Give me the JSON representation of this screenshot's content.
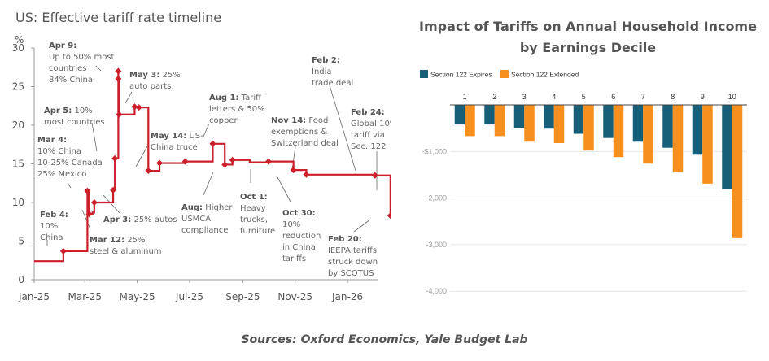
{
  "chart_data": [
    {
      "type": "line",
      "title": "US: Effective tariff rate timeline",
      "ylabel": "%",
      "ylim": [
        0,
        30
      ],
      "yticks": [
        "0",
        "5",
        "10",
        "15",
        "20",
        "25",
        "30"
      ],
      "xticks": [
        "Jan-25",
        "Mar-25",
        "May-25",
        "Jul-25",
        "Sep-25",
        "Nov-25",
        "Jan-26"
      ],
      "line_style": "step",
      "color": "#cc1f2b",
      "points": [
        {
          "date": "2025-01-01",
          "value": 2.4,
          "marker": false
        },
        {
          "date": "2025-02-04",
          "value": 3.7,
          "marker": true
        },
        {
          "date": "2025-03-04",
          "value": 11.5,
          "marker": true
        },
        {
          "date": "2025-03-06",
          "value": 8.5,
          "marker": true
        },
        {
          "date": "2025-03-10",
          "value": 8.7,
          "marker": false
        },
        {
          "date": "2025-03-12",
          "value": 10.0,
          "marker": true
        },
        {
          "date": "2025-04-03",
          "value": 11.6,
          "marker": true
        },
        {
          "date": "2025-04-05",
          "value": 15.7,
          "marker": true
        },
        {
          "date": "2025-04-09",
          "value": 27.0,
          "marker": true
        },
        {
          "date": "2025-04-09",
          "value": 26.0,
          "marker": true
        },
        {
          "date": "2025-04-10",
          "value": 21.4,
          "marker": true
        },
        {
          "date": "2025-04-28",
          "value": 22.4,
          "marker": true
        },
        {
          "date": "2025-05-03",
          "value": 22.3,
          "marker": true
        },
        {
          "date": "2025-05-14",
          "value": 14.1,
          "marker": true
        },
        {
          "date": "2025-05-27",
          "value": 15.1,
          "marker": true
        },
        {
          "date": "2025-06-26",
          "value": 15.3,
          "marker": true
        },
        {
          "date": "2025-07-28",
          "value": 17.6,
          "marker": true
        },
        {
          "date": "2025-08-11",
          "value": 14.9,
          "marker": true
        },
        {
          "date": "2025-08-20",
          "value": 15.5,
          "marker": true
        },
        {
          "date": "2025-09-09",
          "value": 15.2,
          "marker": false
        },
        {
          "date": "2025-10-01",
          "value": 15.3,
          "marker": true
        },
        {
          "date": "2025-10-30",
          "value": 14.2,
          "marker": true
        },
        {
          "date": "2025-11-14",
          "value": 13.6,
          "marker": true
        },
        {
          "date": "2026-02-02",
          "value": 13.5,
          "marker": true
        },
        {
          "date": "2026-02-18",
          "value": 13.5,
          "marker": false
        },
        {
          "date": "2026-02-20",
          "value": 8.3,
          "marker": true
        },
        {
          "date": "2026-02-22",
          "value": 8.4,
          "marker": false
        },
        {
          "date": "2026-02-24",
          "value": 10.8,
          "marker": true
        }
      ],
      "annotations": [
        {
          "bold": "Apr 9:",
          "lines": [
            "Up to 50% most",
            "countries",
            "84% China"
          ]
        },
        {
          "bold": "May 3:",
          "lines": [
            " 25%",
            "auto parts"
          ]
        },
        {
          "bold": "Apr 5:",
          "lines": [
            " 10%",
            "most countries"
          ]
        },
        {
          "bold": "Mar 4:",
          "lines": [
            "10% China",
            "10-25% Canada",
            "25% Mexico"
          ]
        },
        {
          "bold": "Feb 4:",
          "lines": [
            "10%",
            "China"
          ]
        },
        {
          "bold": "Mar 12:",
          "lines": [
            " 25%",
            "steel & aluminum"
          ]
        },
        {
          "bold": "Apr 3:",
          "lines": [
            " 25% autos"
          ]
        },
        {
          "bold": "May 14:",
          "lines": [
            " US-",
            "China truce"
          ]
        },
        {
          "bold": "Aug 1:",
          "lines": [
            " Tariff",
            "letters & 50%",
            "copper"
          ]
        },
        {
          "bold": "Aug:",
          "lines": [
            " Higher",
            "USMCA",
            "compliance"
          ]
        },
        {
          "bold": "Oct 1:",
          "lines": [
            "Heavy",
            "trucks,",
            "furniture"
          ]
        },
        {
          "bold": "Nov 14:",
          "lines": [
            " Food",
            "exemptions &",
            "Switzerland deal"
          ]
        },
        {
          "bold": "Oct 30:",
          "lines": [
            "10%",
            "reduction",
            "in China",
            "tariffs"
          ]
        },
        {
          "bold": "Feb 2:",
          "lines": [
            "India",
            "trade deal"
          ]
        },
        {
          "bold": "Feb 24:",
          "lines": [
            "Global 10%",
            "tariff via",
            "Sec. 122"
          ]
        },
        {
          "bold": "Feb 20:",
          "lines": [
            "IEEPA tariffs",
            "struck down",
            "by SCOTUS"
          ]
        }
      ]
    },
    {
      "type": "bar",
      "title": "Impact of Tariffs on Annual Household Income by Earnings Decile",
      "title_lines": [
        "Impact of Tariffs on Annual Household Income",
        "by Earnings Decile"
      ],
      "categories": [
        "1",
        "2",
        "3",
        "4",
        "5",
        "6",
        "7",
        "8",
        "9",
        "10"
      ],
      "ylim": [
        -4000,
        0
      ],
      "yticks": [
        {
          "value": -1000,
          "label": "-$1,000"
        },
        {
          "value": -2000,
          "label": "-2,000"
        },
        {
          "value": -3000,
          "label": "-3,000"
        },
        {
          "value": -4000,
          "label": "-4,000"
        }
      ],
      "legend_position": "top-left",
      "grid": true,
      "series": [
        {
          "name": "Section 122 Expires",
          "color": "#175e79",
          "values": [
            -420,
            -420,
            -490,
            -510,
            -620,
            -710,
            -790,
            -920,
            -1070,
            -1810
          ]
        },
        {
          "name": "Section 122 Extended",
          "color": "#f78f1e",
          "values": [
            -670,
            -670,
            -790,
            -820,
            -980,
            -1120,
            -1260,
            -1450,
            -1690,
            -2860
          ]
        }
      ]
    }
  ],
  "sources": "Sources: Oxford Economics, Yale Budget Lab"
}
